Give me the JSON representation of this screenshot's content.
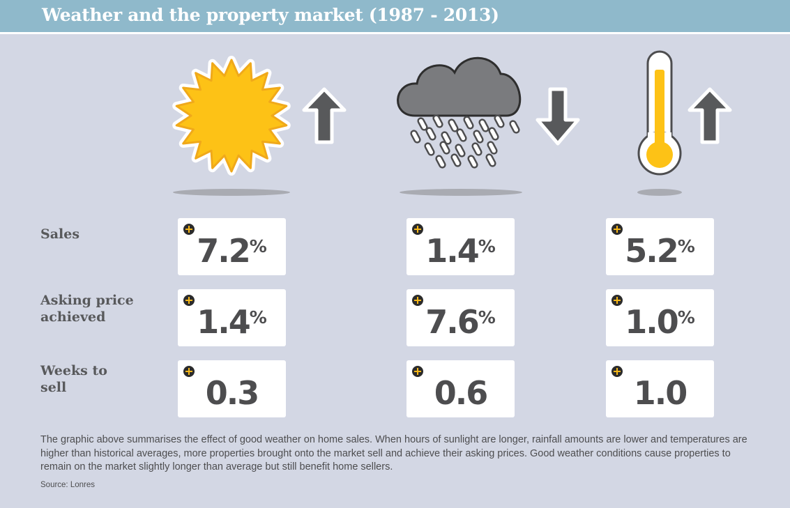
{
  "title": "Weather and the property market (1987 - 2013)",
  "icons": [
    {
      "name": "sun-icon",
      "trend": "up-arrow-icon"
    },
    {
      "name": "rain-cloud-icon",
      "trend": "down-arrow-icon"
    },
    {
      "name": "thermometer-icon",
      "trend": "up-arrow-icon"
    }
  ],
  "rows": [
    {
      "label": "Sales",
      "values": [
        {
          "value": "7.2",
          "unit": "%"
        },
        {
          "value": "1.4",
          "unit": "%"
        },
        {
          "value": "5.2",
          "unit": "%"
        }
      ]
    },
    {
      "label": "Asking price achieved",
      "values": [
        {
          "value": "1.4",
          "unit": "%"
        },
        {
          "value": "7.6",
          "unit": "%"
        },
        {
          "value": "1.0",
          "unit": "%"
        }
      ]
    },
    {
      "label": "Weeks to sell",
      "values": [
        {
          "value": "0.3",
          "unit": ""
        },
        {
          "value": "0.6",
          "unit": ""
        },
        {
          "value": "1.0",
          "unit": ""
        }
      ]
    }
  ],
  "caption": "The graphic above summarises the effect of good weather on home sales. When hours of sunlight are longer, rainfall amounts are lower and temperatures are higher than historical averages, more properties brought onto the market sell and achieve their asking prices. Good weather conditions cause properties to remain on the market slightly longer than average but still benefit home sellers.",
  "source": "Source: Lonres",
  "colors": {
    "background": "#d3d7e4",
    "title_bar": "#8fb9cb",
    "accent": "#f7b718",
    "icon_grey": "#58595b",
    "text": "#4d4d4f"
  }
}
